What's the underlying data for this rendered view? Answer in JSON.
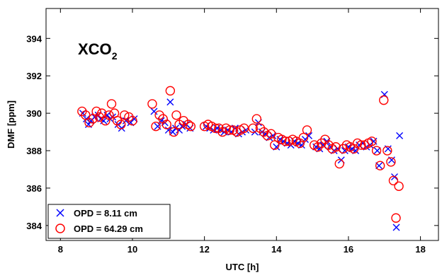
{
  "chart_data": {
    "type": "scatter",
    "title": "",
    "annotation": {
      "main": "XCO",
      "sub": "2"
    },
    "xlabel": "UTC [h]",
    "ylabel": "DMF [ppm]",
    "xlim": [
      7.6,
      18.5
    ],
    "ylim": [
      383.2,
      395.6
    ],
    "xticks": [
      8,
      10,
      12,
      14,
      16,
      18
    ],
    "yticks": [
      384,
      386,
      388,
      390,
      392,
      394
    ],
    "grid": false,
    "legend_position": "bottom-left",
    "series": [
      {
        "name": "OPD = 8.11 cm",
        "marker": "x",
        "color": "#0000ff",
        "points": [
          [
            8.62,
            390.0
          ],
          [
            8.72,
            389.7
          ],
          [
            8.78,
            389.4
          ],
          [
            8.85,
            389.6
          ],
          [
            8.95,
            389.8
          ],
          [
            9.05,
            389.9
          ],
          [
            9.12,
            389.7
          ],
          [
            9.2,
            389.6
          ],
          [
            9.3,
            389.9
          ],
          [
            9.38,
            389.7
          ],
          [
            9.45,
            389.8
          ],
          [
            9.6,
            389.4
          ],
          [
            9.7,
            389.2
          ],
          [
            9.82,
            389.6
          ],
          [
            9.95,
            389.5
          ],
          [
            10.05,
            389.7
          ],
          [
            10.6,
            390.1
          ],
          [
            10.7,
            389.3
          ],
          [
            10.8,
            389.6
          ],
          [
            10.9,
            389.5
          ],
          [
            11.0,
            389.1
          ],
          [
            11.05,
            390.6
          ],
          [
            11.12,
            389.0
          ],
          [
            11.2,
            389.2
          ],
          [
            11.3,
            389.1
          ],
          [
            11.38,
            389.3
          ],
          [
            11.5,
            389.4
          ],
          [
            11.6,
            389.2
          ],
          [
            12.05,
            389.3
          ],
          [
            12.15,
            389.2
          ],
          [
            12.25,
            389.1
          ],
          [
            12.35,
            389.2
          ],
          [
            12.45,
            389.1
          ],
          [
            12.55,
            389.0
          ],
          [
            12.65,
            389.1
          ],
          [
            12.75,
            389.0
          ],
          [
            12.85,
            389.2
          ],
          [
            12.95,
            388.9
          ],
          [
            13.05,
            389.0
          ],
          [
            13.15,
            389.1
          ],
          [
            13.4,
            389.0
          ],
          [
            13.5,
            389.5
          ],
          [
            13.6,
            389.0
          ],
          [
            13.7,
            388.9
          ],
          [
            13.8,
            388.7
          ],
          [
            13.9,
            388.8
          ],
          [
            14.0,
            388.2
          ],
          [
            14.1,
            388.6
          ],
          [
            14.2,
            388.5
          ],
          [
            14.3,
            388.4
          ],
          [
            14.4,
            388.3
          ],
          [
            14.5,
            388.5
          ],
          [
            14.6,
            388.4
          ],
          [
            14.7,
            388.3
          ],
          [
            14.8,
            388.6
          ],
          [
            14.9,
            388.8
          ],
          [
            15.1,
            388.2
          ],
          [
            15.2,
            388.1
          ],
          [
            15.3,
            388.3
          ],
          [
            15.4,
            388.5
          ],
          [
            15.5,
            388.2
          ],
          [
            15.6,
            388.0
          ],
          [
            15.7,
            388.1
          ],
          [
            15.8,
            387.5
          ],
          [
            15.9,
            388.0
          ],
          [
            16.0,
            388.2
          ],
          [
            16.1,
            388.1
          ],
          [
            16.2,
            388.0
          ],
          [
            16.3,
            388.3
          ],
          [
            16.4,
            388.4
          ],
          [
            16.5,
            388.2
          ],
          [
            16.6,
            388.3
          ],
          [
            16.7,
            388.5
          ],
          [
            16.8,
            388.0
          ],
          [
            16.85,
            387.2
          ],
          [
            17.0,
            391.0
          ],
          [
            17.1,
            388.1
          ],
          [
            17.2,
            387.5
          ],
          [
            17.28,
            386.6
          ],
          [
            17.33,
            383.9
          ],
          [
            17.42,
            388.8
          ]
        ]
      },
      {
        "name": "OPD = 64.29 cm",
        "marker": "o",
        "color": "#ff0000",
        "points": [
          [
            8.6,
            390.1
          ],
          [
            8.7,
            389.9
          ],
          [
            8.8,
            389.5
          ],
          [
            8.9,
            389.7
          ],
          [
            9.0,
            390.1
          ],
          [
            9.08,
            389.8
          ],
          [
            9.15,
            390.0
          ],
          [
            9.25,
            389.6
          ],
          [
            9.35,
            389.9
          ],
          [
            9.42,
            390.5
          ],
          [
            9.5,
            390.0
          ],
          [
            9.58,
            389.6
          ],
          [
            9.68,
            389.4
          ],
          [
            9.78,
            389.9
          ],
          [
            9.9,
            389.8
          ],
          [
            10.0,
            389.6
          ],
          [
            10.55,
            390.5
          ],
          [
            10.65,
            389.3
          ],
          [
            10.75,
            389.9
          ],
          [
            10.85,
            389.7
          ],
          [
            10.95,
            389.4
          ],
          [
            11.05,
            391.2
          ],
          [
            11.15,
            389.0
          ],
          [
            11.22,
            389.9
          ],
          [
            11.3,
            389.4
          ],
          [
            11.42,
            389.6
          ],
          [
            11.55,
            389.4
          ],
          [
            11.62,
            389.3
          ],
          [
            12.0,
            389.3
          ],
          [
            12.1,
            389.4
          ],
          [
            12.2,
            389.3
          ],
          [
            12.3,
            389.2
          ],
          [
            12.4,
            389.2
          ],
          [
            12.5,
            389.0
          ],
          [
            12.6,
            389.2
          ],
          [
            12.7,
            389.1
          ],
          [
            12.8,
            389.1
          ],
          [
            12.9,
            389.0
          ],
          [
            13.0,
            389.1
          ],
          [
            13.1,
            389.2
          ],
          [
            13.35,
            389.2
          ],
          [
            13.45,
            389.7
          ],
          [
            13.55,
            389.2
          ],
          [
            13.65,
            389.0
          ],
          [
            13.75,
            388.8
          ],
          [
            13.85,
            388.9
          ],
          [
            13.95,
            388.3
          ],
          [
            14.05,
            388.7
          ],
          [
            14.15,
            388.6
          ],
          [
            14.25,
            388.5
          ],
          [
            14.35,
            388.5
          ],
          [
            14.45,
            388.6
          ],
          [
            14.55,
            388.5
          ],
          [
            14.65,
            388.4
          ],
          [
            14.75,
            388.7
          ],
          [
            14.85,
            389.1
          ],
          [
            15.05,
            388.3
          ],
          [
            15.15,
            388.2
          ],
          [
            15.25,
            388.4
          ],
          [
            15.35,
            388.6
          ],
          [
            15.45,
            388.3
          ],
          [
            15.55,
            388.1
          ],
          [
            15.65,
            388.2
          ],
          [
            15.75,
            387.3
          ],
          [
            15.85,
            388.1
          ],
          [
            15.95,
            388.3
          ],
          [
            16.05,
            388.2
          ],
          [
            16.15,
            388.1
          ],
          [
            16.25,
            388.4
          ],
          [
            16.35,
            388.3
          ],
          [
            16.45,
            388.3
          ],
          [
            16.55,
            388.4
          ],
          [
            16.65,
            388.5
          ],
          [
            16.78,
            388.0
          ],
          [
            16.88,
            387.2
          ],
          [
            16.98,
            390.7
          ],
          [
            17.08,
            388.0
          ],
          [
            17.18,
            387.4
          ],
          [
            17.25,
            386.4
          ],
          [
            17.32,
            384.4
          ],
          [
            17.4,
            386.1
          ]
        ]
      }
    ]
  }
}
